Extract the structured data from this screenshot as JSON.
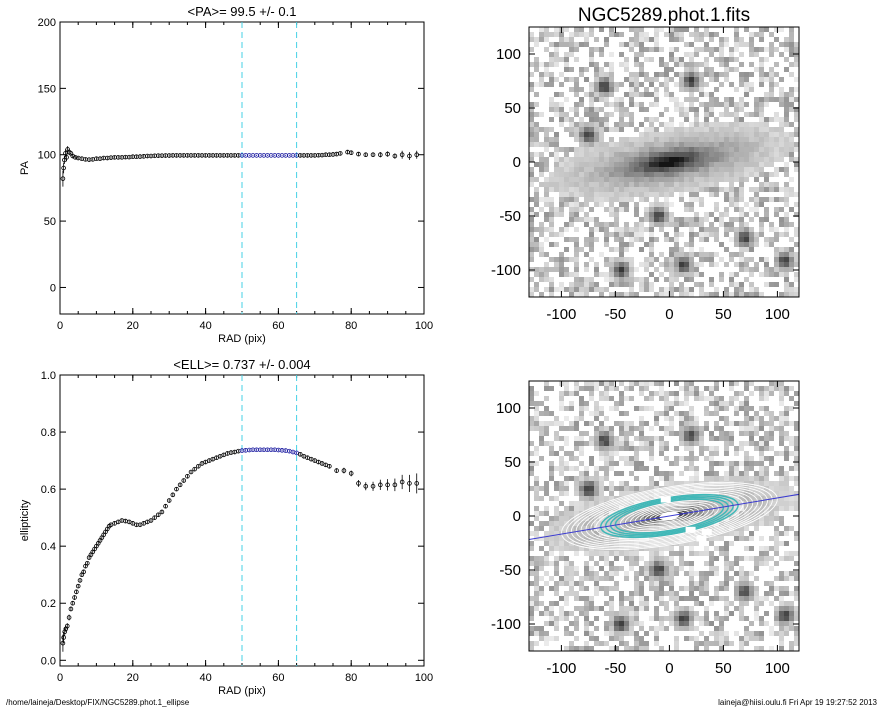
{
  "footer": {
    "path": "/home/laineja/Desktop/FIX/NGC5289.phot.1_ellipse",
    "stamp": "laineja@hiisi.oulu.fi  Fri Apr 19 19:27:52 2013"
  },
  "colors": {
    "data": "#000000",
    "highlight": "#1a1aa0",
    "guide": "#46d2e6",
    "profile_line": "#3a3ad0",
    "contour": "#ffffff",
    "inner_contour": "#40b8b8"
  },
  "chart_data": [
    {
      "id": "pa",
      "type": "scatter",
      "title": "<PA>=  99.5 +/-   0.1",
      "xlabel": "RAD (pix)",
      "ylabel": "PA",
      "xlim": [
        0,
        100
      ],
      "ylim": [
        -20,
        200
      ],
      "xticks": [
        "0",
        "20",
        "40",
        "60",
        "80",
        "100"
      ],
      "yticks": [
        "0",
        "50",
        "100",
        "150",
        "200"
      ],
      "vlines": [
        50,
        65
      ],
      "highlight_range": [
        50,
        65
      ],
      "points": [
        [
          0.8,
          82,
          6
        ],
        [
          1.0,
          90,
          4
        ],
        [
          1.2,
          96,
          3
        ],
        [
          1.5,
          101,
          3
        ],
        [
          1.8,
          98,
          3
        ],
        [
          2.1,
          104,
          2.5
        ],
        [
          2.5,
          102,
          2
        ],
        [
          3.0,
          101,
          2
        ],
        [
          3.5,
          99,
          1.5
        ],
        [
          4.2,
          98,
          1.2
        ],
        [
          5,
          97.5,
          1
        ],
        [
          6,
          97,
          1
        ],
        [
          7,
          96.5,
          1
        ],
        [
          8,
          96.3,
          1
        ],
        [
          9,
          96.5,
          1
        ],
        [
          10,
          97,
          1
        ],
        [
          11,
          97,
          1
        ],
        [
          12,
          97.5,
          1
        ],
        [
          13,
          97.5,
          1
        ],
        [
          14,
          97.8,
          1
        ],
        [
          15,
          98,
          1
        ],
        [
          16,
          98,
          1
        ],
        [
          17,
          98,
          1
        ],
        [
          18,
          98.2,
          1
        ],
        [
          19,
          98.2,
          1
        ],
        [
          20,
          98.5,
          1
        ],
        [
          21,
          98.5,
          1
        ],
        [
          22,
          98.6,
          1
        ],
        [
          23,
          98.8,
          1
        ],
        [
          24,
          99,
          1
        ],
        [
          25,
          99,
          1
        ],
        [
          26,
          99.2,
          1
        ],
        [
          27,
          99.3,
          1
        ],
        [
          28,
          99.3,
          1
        ],
        [
          29,
          99.4,
          1
        ],
        [
          30,
          99.4,
          1
        ],
        [
          31,
          99.5,
          1
        ],
        [
          32,
          99.5,
          1
        ],
        [
          33,
          99.5,
          1
        ],
        [
          34,
          99.5,
          1
        ],
        [
          35,
          99.5,
          1
        ],
        [
          36,
          99.5,
          1
        ],
        [
          37,
          99.5,
          1
        ],
        [
          38,
          99.5,
          1
        ],
        [
          39,
          99.5,
          1
        ],
        [
          40,
          99.5,
          1
        ],
        [
          41,
          99.5,
          1
        ],
        [
          42,
          99.5,
          1
        ],
        [
          43,
          99.5,
          1
        ],
        [
          44,
          99.5,
          1
        ],
        [
          45,
          99.5,
          1
        ],
        [
          46,
          99.5,
          1
        ],
        [
          47,
          99.5,
          1
        ],
        [
          48,
          99.5,
          1
        ],
        [
          49,
          99.5,
          1
        ],
        [
          50,
          99.5,
          0.5
        ],
        [
          51,
          99.5,
          0.5
        ],
        [
          52,
          99.5,
          0.5
        ],
        [
          53,
          99.5,
          0.5
        ],
        [
          54,
          99.5,
          0.5
        ],
        [
          55,
          99.5,
          0.5
        ],
        [
          56,
          99.5,
          0.5
        ],
        [
          57,
          99.5,
          0.5
        ],
        [
          58,
          99.5,
          0.5
        ],
        [
          59,
          99.5,
          0.5
        ],
        [
          60,
          99.5,
          0.5
        ],
        [
          61,
          99.5,
          0.5
        ],
        [
          62,
          99.5,
          0.5
        ],
        [
          63,
          99.5,
          0.5
        ],
        [
          64,
          99.5,
          0.5
        ],
        [
          65,
          99.5,
          0.5
        ],
        [
          66,
          99.5,
          1
        ],
        [
          67,
          99.5,
          1
        ],
        [
          68,
          99.5,
          1
        ],
        [
          69,
          99.5,
          1
        ],
        [
          70,
          99.5,
          1
        ],
        [
          71,
          99.6,
          1
        ],
        [
          72,
          99.7,
          1
        ],
        [
          73,
          100,
          1
        ],
        [
          74,
          100,
          1
        ],
        [
          75,
          100.2,
          1
        ],
        [
          76,
          100.5,
          1
        ],
        [
          77,
          101,
          1
        ],
        [
          79,
          102,
          1.5
        ],
        [
          80,
          101.5,
          1.5
        ],
        [
          82,
          100.5,
          1.5
        ],
        [
          84,
          100,
          1.5
        ],
        [
          86,
          100,
          1.5
        ],
        [
          88,
          100,
          2
        ],
        [
          90,
          100.5,
          2
        ],
        [
          92,
          99,
          2
        ],
        [
          94,
          100,
          3
        ],
        [
          96,
          99,
          3
        ],
        [
          98,
          100,
          3
        ]
      ]
    },
    {
      "id": "ell",
      "type": "scatter",
      "title": "<ELL>= 0.737 +/-  0.004",
      "xlabel": "RAD (pix)",
      "ylabel": "ellipticity",
      "xlim": [
        0,
        100
      ],
      "ylim": [
        -0.02,
        1.0
      ],
      "xticks": [
        "0",
        "20",
        "40",
        "60",
        "80",
        "100"
      ],
      "yticks": [
        "0.0",
        "0.2",
        "0.4",
        "0.6",
        "0.8",
        "1.0"
      ],
      "vlines": [
        50,
        65
      ],
      "highlight_range": [
        50,
        65
      ],
      "points": [
        [
          0.8,
          0.06,
          0.03
        ],
        [
          1.0,
          0.08,
          0.02
        ],
        [
          1.3,
          0.1,
          0.015
        ],
        [
          1.6,
          0.11,
          0.01
        ],
        [
          2.0,
          0.12,
          0.01
        ],
        [
          2.5,
          0.15,
          0.01
        ],
        [
          3.0,
          0.18,
          0.008
        ],
        [
          3.5,
          0.2,
          0.008
        ],
        [
          4.0,
          0.22,
          0.008
        ],
        [
          4.5,
          0.24,
          0.008
        ],
        [
          5.0,
          0.26,
          0.006
        ],
        [
          5.5,
          0.28,
          0.006
        ],
        [
          6.0,
          0.3,
          0.006
        ],
        [
          6.5,
          0.31,
          0.006
        ],
        [
          7.0,
          0.33,
          0.006
        ],
        [
          7.5,
          0.34,
          0.005
        ],
        [
          8.0,
          0.36,
          0.005
        ],
        [
          8.5,
          0.37,
          0.005
        ],
        [
          9.0,
          0.38,
          0.005
        ],
        [
          9.5,
          0.39,
          0.005
        ],
        [
          10,
          0.4,
          0.005
        ],
        [
          10.5,
          0.41,
          0.005
        ],
        [
          11,
          0.42,
          0.005
        ],
        [
          11.5,
          0.43,
          0.005
        ],
        [
          12,
          0.44,
          0.005
        ],
        [
          12.5,
          0.45,
          0.005
        ],
        [
          13,
          0.46,
          0.005
        ],
        [
          13.5,
          0.47,
          0.005
        ],
        [
          14,
          0.475,
          0.005
        ],
        [
          15,
          0.48,
          0.005
        ],
        [
          16,
          0.485,
          0.005
        ],
        [
          17,
          0.49,
          0.005
        ],
        [
          18,
          0.488,
          0.005
        ],
        [
          19,
          0.485,
          0.005
        ],
        [
          20,
          0.48,
          0.005
        ],
        [
          21,
          0.475,
          0.005
        ],
        [
          22,
          0.475,
          0.005
        ],
        [
          23,
          0.48,
          0.005
        ],
        [
          24,
          0.485,
          0.005
        ],
        [
          25,
          0.49,
          0.006
        ],
        [
          26,
          0.5,
          0.006
        ],
        [
          27,
          0.51,
          0.006
        ],
        [
          28,
          0.52,
          0.006
        ],
        [
          29,
          0.54,
          0.006
        ],
        [
          30,
          0.56,
          0.006
        ],
        [
          31,
          0.58,
          0.006
        ],
        [
          32,
          0.6,
          0.006
        ],
        [
          33,
          0.615,
          0.006
        ],
        [
          34,
          0.63,
          0.006
        ],
        [
          35,
          0.645,
          0.006
        ],
        [
          36,
          0.66,
          0.005
        ],
        [
          37,
          0.67,
          0.005
        ],
        [
          38,
          0.68,
          0.005
        ],
        [
          39,
          0.69,
          0.005
        ],
        [
          40,
          0.695,
          0.005
        ],
        [
          41,
          0.7,
          0.005
        ],
        [
          42,
          0.705,
          0.005
        ],
        [
          43,
          0.71,
          0.005
        ],
        [
          44,
          0.715,
          0.005
        ],
        [
          45,
          0.72,
          0.005
        ],
        [
          46,
          0.725,
          0.005
        ],
        [
          47,
          0.728,
          0.005
        ],
        [
          48,
          0.73,
          0.005
        ],
        [
          49,
          0.733,
          0.004
        ],
        [
          50,
          0.735,
          0.004
        ],
        [
          51,
          0.736,
          0.004
        ],
        [
          52,
          0.737,
          0.004
        ],
        [
          53,
          0.738,
          0.004
        ],
        [
          54,
          0.738,
          0.004
        ],
        [
          55,
          0.738,
          0.004
        ],
        [
          56,
          0.738,
          0.004
        ],
        [
          57,
          0.738,
          0.004
        ],
        [
          58,
          0.738,
          0.004
        ],
        [
          59,
          0.738,
          0.004
        ],
        [
          60,
          0.737,
          0.004
        ],
        [
          61,
          0.736,
          0.004
        ],
        [
          62,
          0.735,
          0.004
        ],
        [
          63,
          0.733,
          0.004
        ],
        [
          64,
          0.73,
          0.004
        ],
        [
          65,
          0.727,
          0.004
        ],
        [
          66,
          0.722,
          0.005
        ],
        [
          67,
          0.715,
          0.005
        ],
        [
          68,
          0.71,
          0.005
        ],
        [
          69,
          0.705,
          0.005
        ],
        [
          70,
          0.7,
          0.005
        ],
        [
          71,
          0.695,
          0.006
        ],
        [
          72,
          0.69,
          0.006
        ],
        [
          73,
          0.685,
          0.006
        ],
        [
          74,
          0.68,
          0.008
        ],
        [
          76,
          0.665,
          0.008
        ],
        [
          78,
          0.665,
          0.01
        ],
        [
          80,
          0.655,
          0.01
        ],
        [
          82,
          0.62,
          0.012
        ],
        [
          84,
          0.61,
          0.014
        ],
        [
          86,
          0.61,
          0.016
        ],
        [
          88,
          0.615,
          0.018
        ],
        [
          90,
          0.615,
          0.02
        ],
        [
          92,
          0.615,
          0.022
        ],
        [
          94,
          0.625,
          0.025
        ],
        [
          96,
          0.62,
          0.03
        ],
        [
          98,
          0.62,
          0.035
        ]
      ]
    },
    {
      "id": "image",
      "type": "heatmap",
      "title": "NGC5289.phot.1.fits",
      "xlim": [
        -130,
        120
      ],
      "ylim": [
        -125,
        125
      ],
      "xticks": [
        "-100",
        "-50",
        "0",
        "50",
        "100"
      ],
      "yticks": [
        "-100",
        "-50",
        "0",
        "50",
        "100"
      ],
      "galaxy": {
        "center": [
          0,
          0
        ],
        "pa_deg": 9.5,
        "ellipticity": 0.74,
        "semi_major": 95
      },
      "stars": [
        [
          -60,
          70
        ],
        [
          -75,
          25
        ],
        [
          20,
          75
        ],
        [
          -10,
          -50
        ],
        [
          70,
          -70
        ],
        [
          107,
          -92
        ],
        [
          13,
          -95
        ],
        [
          -45,
          -100
        ]
      ]
    },
    {
      "id": "fit",
      "type": "heatmap",
      "xlim": [
        -130,
        120
      ],
      "ylim": [
        -125,
        125
      ],
      "xticks": [
        "-100",
        "-50",
        "0",
        "50",
        "100"
      ],
      "yticks": [
        "-100",
        "-50",
        "0",
        "50",
        "100"
      ],
      "profile_line_angle_deg": 9.5,
      "contours": 22,
      "highlight_contours": [
        50,
        65
      ]
    }
  ]
}
